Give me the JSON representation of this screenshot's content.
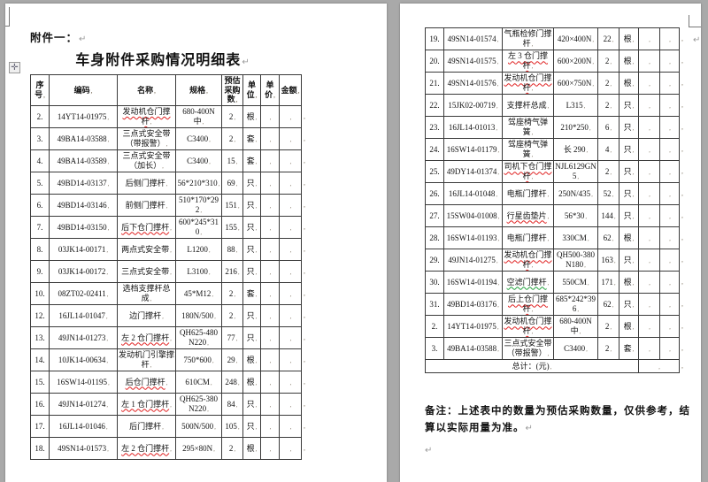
{
  "attachment_label": "附件一：",
  "title": "车身附件采购情况明细表",
  "pilcrow": "↵",
  "handle_icon": "✛",
  "note": "备注：上述表中的数量为预估采购数量，仅供参考，结算以实际用量为准。",
  "table": {
    "headers": [
      "序号",
      "编码",
      "名称",
      "规格",
      "预估采购数",
      "单位",
      "单价",
      "金额"
    ],
    "total_label": "总计：(元)",
    "left_rows": [
      {
        "no": "2",
        "code": "14YT14-01975",
        "name": "发动机仓门撑杆",
        "spec": "680-400N 中",
        "qty": "2",
        "unit": "根",
        "price": "",
        "amount": "",
        "u": "red"
      },
      {
        "no": "3",
        "code": "49BA14-03588",
        "name": "三点式安全带（带报警）",
        "spec": "C3400",
        "qty": "2",
        "unit": "套",
        "price": "",
        "amount": "",
        "u": ""
      },
      {
        "no": "4",
        "code": "49BA14-03589",
        "name": "三点式安全带（加长）",
        "spec": "C3400",
        "qty": "15",
        "unit": "套",
        "price": "",
        "amount": "",
        "u": ""
      },
      {
        "no": "5",
        "code": "49BD14-03137",
        "name": "后侧门撑杆",
        "spec": "56*210*310",
        "qty": "69",
        "unit": "只",
        "price": "",
        "amount": "",
        "u": ""
      },
      {
        "no": "6",
        "code": "49BD14-03146",
        "name": "前侧门撑杆",
        "spec": "510*170*292",
        "qty": "151",
        "unit": "只",
        "price": "",
        "amount": "",
        "u": ""
      },
      {
        "no": "7",
        "code": "49BD14-03150",
        "name": "后下仓门撑杆",
        "spec": "600*245*310",
        "qty": "155",
        "unit": "只",
        "price": "",
        "amount": "",
        "u": "red"
      },
      {
        "no": "8",
        "code": "03JK14-00171",
        "name": "两点式安全带",
        "spec": "L1200",
        "qty": "88",
        "unit": "只",
        "price": "",
        "amount": "",
        "u": ""
      },
      {
        "no": "9",
        "code": "03JK14-00172",
        "name": "三点式安全带",
        "spec": "L3100",
        "qty": "216",
        "unit": "只",
        "price": "",
        "amount": "",
        "u": ""
      },
      {
        "no": "10",
        "code": "08ZT02-02411",
        "name": "选档支撑杆总成",
        "spec": "45*M12",
        "qty": "2",
        "unit": "套",
        "price": "",
        "amount": "",
        "u": ""
      },
      {
        "no": "12",
        "code": "16JL14-01047",
        "name": "边门撑杆",
        "spec": "180N/500",
        "qty": "2",
        "unit": "只",
        "price": "",
        "amount": "",
        "u": ""
      },
      {
        "no": "13",
        "code": "49JN14-01273",
        "name": "左 2 仓门撑杆",
        "spec": "QH625-480N220",
        "qty": "77",
        "unit": "只",
        "price": "",
        "amount": "",
        "u": "red"
      },
      {
        "no": "14",
        "code": "10JK14-00634",
        "name": "发动机门引擎撑杆",
        "spec": "750*600",
        "qty": "29",
        "unit": "根",
        "price": "",
        "amount": "",
        "u": ""
      },
      {
        "no": "15",
        "code": "16SW14-01195",
        "name": "后仓门撑杆",
        "spec": "610CM",
        "qty": "248",
        "unit": "根",
        "price": "",
        "amount": "",
        "u": "red"
      },
      {
        "no": "16",
        "code": "49JN14-01274",
        "name": "左 1 仓门撑杆",
        "spec": "QH625-380N220",
        "qty": "84",
        "unit": "只",
        "price": "",
        "amount": "",
        "u": "red"
      },
      {
        "no": "17",
        "code": "16JL14-01046",
        "name": "后门撑杆",
        "spec": "500N/500",
        "qty": "105",
        "unit": "只",
        "price": "",
        "amount": "",
        "u": ""
      },
      {
        "no": "18",
        "code": "49SN14-01573",
        "name": "左 2 仓门撑杆",
        "spec": "295×80N",
        "qty": "2",
        "unit": "根",
        "price": "",
        "amount": "",
        "u": "red"
      }
    ],
    "right_rows": [
      {
        "no": "19",
        "code": "49SN14-01574",
        "name": "气瓶检修门撑杆",
        "spec": "420×400N",
        "qty": "22",
        "unit": "根",
        "price": "",
        "amount": "",
        "u": ""
      },
      {
        "no": "20",
        "code": "49SN14-01575",
        "name": "左 3 仓门撑杆",
        "spec": "600×200N",
        "qty": "2",
        "unit": "根",
        "price": "",
        "amount": "",
        "u": "red"
      },
      {
        "no": "21",
        "code": "49SN14-01576",
        "name": "发动机仓门撑杆",
        "spec": "600×750N",
        "qty": "2",
        "unit": "根",
        "price": "",
        "amount": "",
        "u": "red"
      },
      {
        "no": "22",
        "code": "15JK02-00719",
        "name": "支撑杆总成",
        "spec": "L315",
        "qty": "2",
        "unit": "只",
        "price": "",
        "amount": "",
        "u": ""
      },
      {
        "no": "23",
        "code": "16JL14-01013",
        "name": "驾座椅气弹簧",
        "spec": "210*250",
        "qty": "6",
        "unit": "只",
        "price": "",
        "amount": "",
        "u": ""
      },
      {
        "no": "24",
        "code": "16SW14-01179",
        "name": "驾座椅气弹簧",
        "spec": "长 290",
        "qty": "4",
        "unit": "只",
        "price": "",
        "amount": "",
        "u": ""
      },
      {
        "no": "25",
        "code": "49DY14-01374",
        "name": "司机下仓门撑杆",
        "spec": "NJL6129GN5",
        "qty": "2",
        "unit": "只",
        "price": "",
        "amount": "",
        "u": "red"
      },
      {
        "no": "26",
        "code": "16JL14-01048",
        "name": "电瓶门撑杆",
        "spec": "250N/435",
        "qty": "52",
        "unit": "只",
        "price": "",
        "amount": "",
        "u": ""
      },
      {
        "no": "27",
        "code": "15SW04-01008",
        "name": "行星齿垫片",
        "spec": "56*30",
        "qty": "144",
        "unit": "只",
        "price": "",
        "amount": "",
        "u": "red"
      },
      {
        "no": "28",
        "code": "16SW14-01193",
        "name": "电瓶门撑杆",
        "spec": "330CM",
        "qty": "62",
        "unit": "根",
        "price": "",
        "amount": "",
        "u": ""
      },
      {
        "no": "29",
        "code": "49JN14-01275",
        "name": "发动机仓门撑杆",
        "spec": "QH500-380N180",
        "qty": "163",
        "unit": "只",
        "price": "",
        "amount": "",
        "u": "red"
      },
      {
        "no": "30",
        "code": "16SW14-01194",
        "name": "空滤门撑杆",
        "spec": "550CM",
        "qty": "171",
        "unit": "根",
        "price": "",
        "amount": "",
        "u": "green"
      },
      {
        "no": "31",
        "code": "49BD14-03176",
        "name": "后上仓门撑杆",
        "spec": "685*242*396",
        "qty": "62",
        "unit": "只",
        "price": "",
        "amount": "",
        "u": "red"
      },
      {
        "no": "2",
        "code": "14YT14-01975",
        "name": "发动机仓门撑杆",
        "spec": "680-400N 中",
        "qty": "2",
        "unit": "根",
        "price": "",
        "amount": "",
        "u": "red"
      },
      {
        "no": "3",
        "code": "49BA14-03588",
        "name": "三点式安全带（带报警）",
        "spec": "C3400",
        "qty": "2",
        "unit": "套",
        "price": "",
        "amount": "",
        "u": ""
      }
    ]
  }
}
